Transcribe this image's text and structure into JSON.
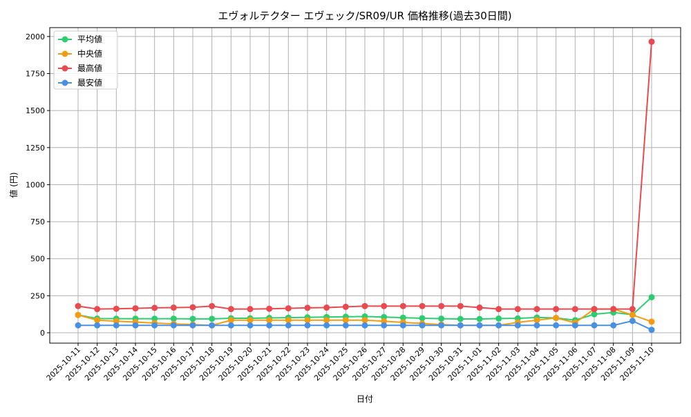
{
  "chart_data": {
    "type": "line",
    "title": "エヴォルテクター エヴェック/SR09/UR 価格推移(過去30日間)",
    "xlabel": "日付",
    "ylabel": "値 (円)",
    "ylim": [
      -70,
      2060
    ],
    "yticks": [
      0,
      250,
      500,
      750,
      1000,
      1250,
      1500,
      1750,
      2000
    ],
    "grid": true,
    "legend_position": "top-left",
    "x": [
      "2025-10-11",
      "2025-10-12",
      "2025-10-13",
      "2025-10-14",
      "2025-10-15",
      "2025-10-16",
      "2025-10-17",
      "2025-10-18",
      "2025-10-19",
      "2025-10-20",
      "2025-10-21",
      "2025-10-22",
      "2025-10-23",
      "2025-10-24",
      "2025-10-25",
      "2025-10-26",
      "2025-10-27",
      "2025-10-28",
      "2025-10-29",
      "2025-10-30",
      "2025-10-31",
      "2025-11-01",
      "2025-11-02",
      "2025-11-03",
      "2025-11-04",
      "2025-11-05",
      "2025-11-06",
      "2025-11-07",
      "2025-11-08",
      "2025-11-09",
      "2025-11-10"
    ],
    "series": [
      {
        "name": "平均値",
        "color": "#2ecc71",
        "values": [
          120,
          96,
          95,
          95,
          95,
          95,
          94,
          94,
          98,
          98,
          100,
          102,
          104,
          106,
          108,
          110,
          106,
          102,
          98,
          95,
          93,
          93,
          96,
          97,
          103,
          100,
          85,
          125,
          137,
          122,
          240
        ]
      },
      {
        "name": "中央値",
        "color": "#f39c12",
        "values": [
          120,
          85,
          78,
          72,
          65,
          60,
          55,
          50,
          85,
          85,
          85,
          85,
          85,
          85,
          85,
          85,
          78,
          70,
          62,
          55,
          50,
          50,
          50,
          70,
          85,
          100,
          68,
          160,
          160,
          120,
          75
        ]
      },
      {
        "name": "最高値",
        "color": "#e84a4f",
        "values": [
          180,
          160,
          162,
          165,
          168,
          170,
          172,
          180,
          160,
          160,
          162,
          165,
          168,
          170,
          175,
          180,
          180,
          180,
          180,
          180,
          180,
          170,
          160,
          160,
          160,
          160,
          160,
          160,
          160,
          160,
          1965
        ]
      },
      {
        "name": "最安値",
        "color": "#4a90e2",
        "values": [
          50,
          50,
          50,
          50,
          50,
          50,
          50,
          50,
          50,
          50,
          50,
          50,
          50,
          50,
          50,
          50,
          50,
          50,
          50,
          50,
          50,
          50,
          50,
          50,
          50,
          50,
          50,
          50,
          50,
          80,
          20
        ]
      }
    ]
  }
}
